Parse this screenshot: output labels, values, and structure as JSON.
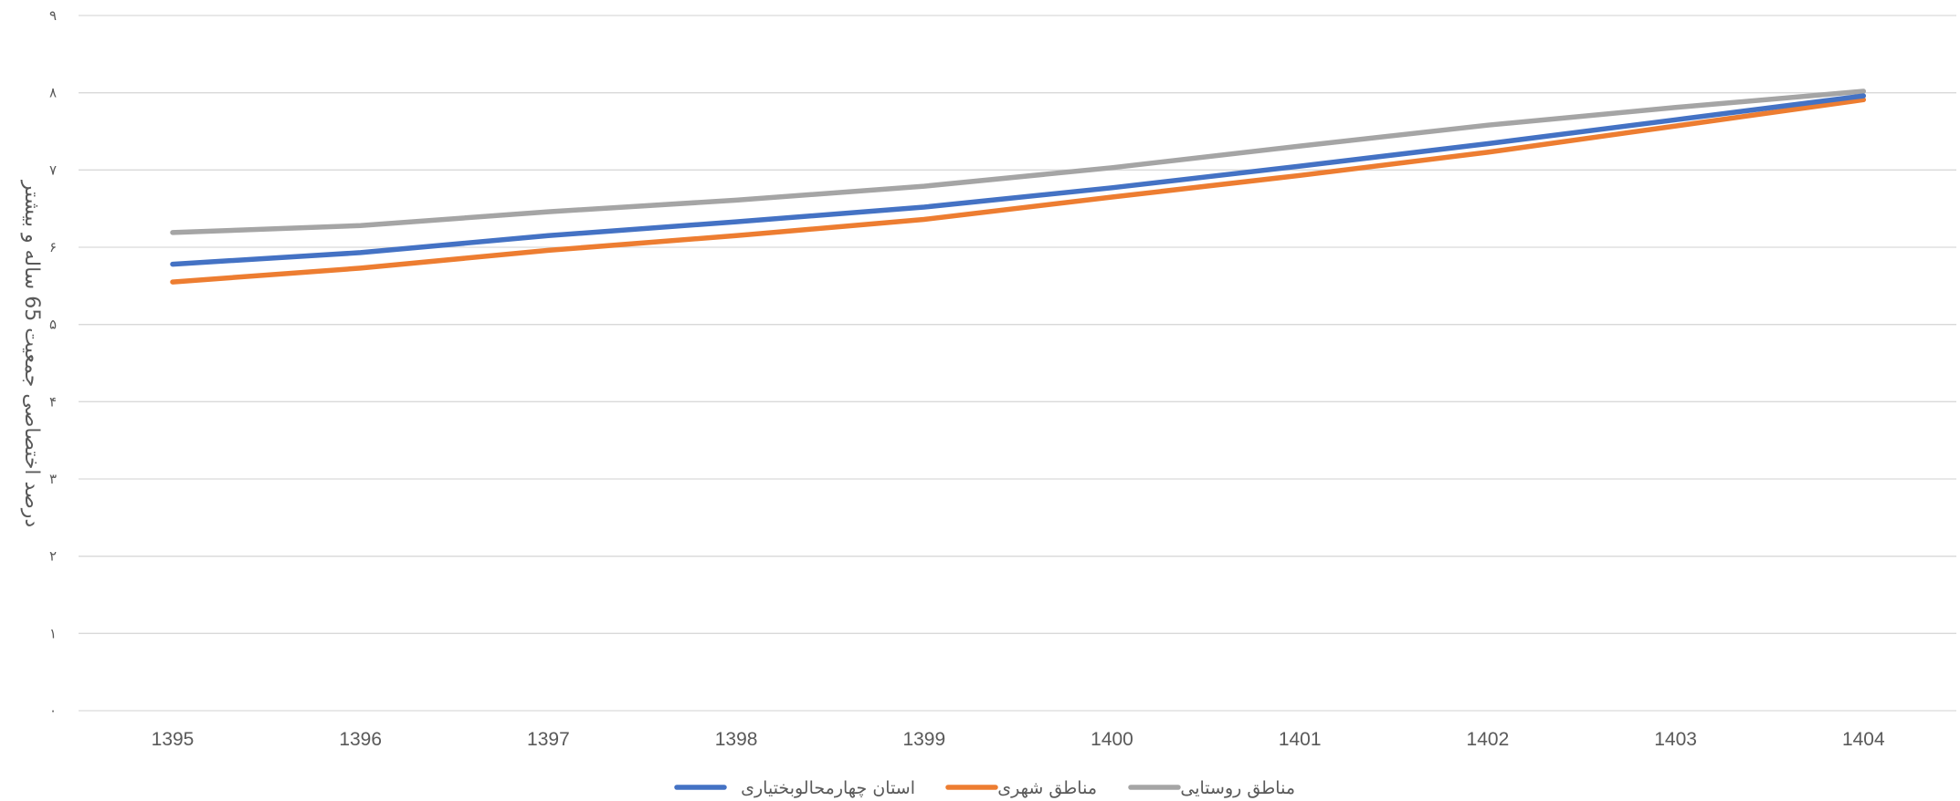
{
  "chart_data": {
    "type": "line",
    "title": "",
    "xlabel": "",
    "ylabel": "درصد اختصاصی جمعیت 65 ساله و بیشتر",
    "categories": [
      "1395",
      "1396",
      "1397",
      "1398",
      "1399",
      "1400",
      "1401",
      "1402",
      "1403",
      "1404"
    ],
    "ylim": [
      0,
      9
    ],
    "yticks": [
      0,
      1,
      2,
      3,
      4,
      5,
      6,
      7,
      8,
      9
    ],
    "ytick_labels": [
      "۰",
      "۱",
      "۲",
      "۳",
      "۴",
      "۵",
      "۶",
      "۷",
      "۸",
      "۹"
    ],
    "grid": true,
    "legend_position": "bottom",
    "series": [
      {
        "name": "استان چهارمحالوبختیاری",
        "color": "#4472C4",
        "values": [
          5.78,
          5.93,
          6.15,
          6.33,
          6.52,
          6.77,
          7.05,
          7.34,
          7.65,
          7.96
        ]
      },
      {
        "name": "مناطق شهری",
        "color": "#ED7D31",
        "values": [
          5.55,
          5.73,
          5.96,
          6.15,
          6.36,
          6.65,
          6.93,
          7.23,
          7.57,
          7.91
        ]
      },
      {
        "name": "مناطق روستایی",
        "color": "#A5A5A5",
        "values": [
          6.19,
          6.28,
          6.46,
          6.61,
          6.79,
          7.03,
          7.31,
          7.58,
          7.81,
          8.02
        ]
      }
    ]
  }
}
